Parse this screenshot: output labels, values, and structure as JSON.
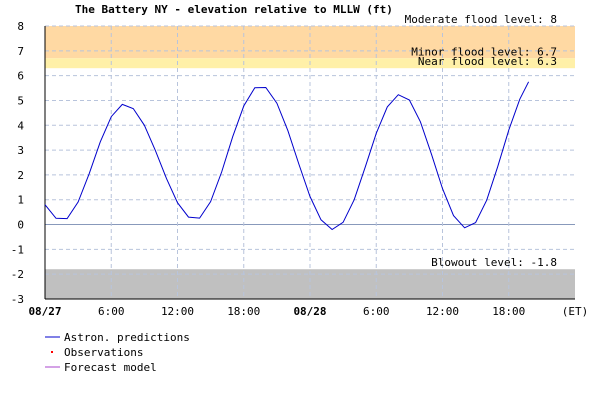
{
  "chart_data": {
    "type": "line",
    "title": "The Battery NY  -  elevation relative to MLLW (ft)",
    "xlim": [
      0,
      48
    ],
    "xticks": [
      {
        "value": 0,
        "label": "08/27"
      },
      {
        "value": 6,
        "label": "6:00"
      },
      {
        "value": 12,
        "label": "12:00"
      },
      {
        "value": 18,
        "label": "18:00"
      },
      {
        "value": 24,
        "label": "08/28"
      },
      {
        "value": 30,
        "label": "6:00"
      },
      {
        "value": 36,
        "label": "12:00"
      },
      {
        "value": 42,
        "label": "18:00"
      },
      {
        "value": 48,
        "label": "(ET)"
      }
    ],
    "ylim": [
      -3,
      8
    ],
    "yticks": [
      -3,
      -2,
      -1,
      0,
      1,
      2,
      3,
      4,
      5,
      6,
      7,
      8
    ],
    "grid": true,
    "thresholds": [
      {
        "name": "Moderate flood level:",
        "value": 8
      },
      {
        "name": "Minor flood level:",
        "value": 6.7,
        "color": "#ffd9a3"
      },
      {
        "name": "Near flood level:",
        "value": 6.3,
        "color": "#fff0a8"
      },
      {
        "name": "Blowout level:",
        "value": -1.8,
        "color": "#c0c0c0"
      }
    ],
    "x": [
      0,
      1,
      2,
      3,
      4,
      5,
      6,
      7,
      8,
      9,
      10,
      11,
      12,
      13,
      14,
      15,
      16,
      17,
      18,
      19,
      20,
      21,
      22,
      23,
      24,
      25,
      26,
      27,
      28,
      29,
      30,
      31,
      32,
      33,
      34,
      35,
      36,
      37,
      38,
      39,
      40,
      41,
      42,
      43,
      43.8
    ],
    "series": [
      {
        "name": "Astron. predictions",
        "color": "#0000cc",
        "values": [
          0.8,
          0.25,
          0.24,
          0.91,
          2.05,
          3.32,
          4.35,
          4.84,
          4.67,
          4.0,
          2.98,
          1.85,
          0.88,
          0.3,
          0.26,
          0.92,
          2.12,
          3.54,
          4.78,
          5.51,
          5.52,
          4.89,
          3.78,
          2.42,
          1.13,
          0.19,
          -0.2,
          0.09,
          1.0,
          2.31,
          3.68,
          4.74,
          5.23,
          5.02,
          4.14,
          2.83,
          1.45,
          0.36,
          -0.13,
          0.08,
          0.98,
          2.33,
          3.81,
          5.05,
          5.75
        ]
      },
      {
        "name": "Observations",
        "color": "#ff0000"
      },
      {
        "name": "Forecast model",
        "color": "#aa44cc"
      }
    ]
  }
}
